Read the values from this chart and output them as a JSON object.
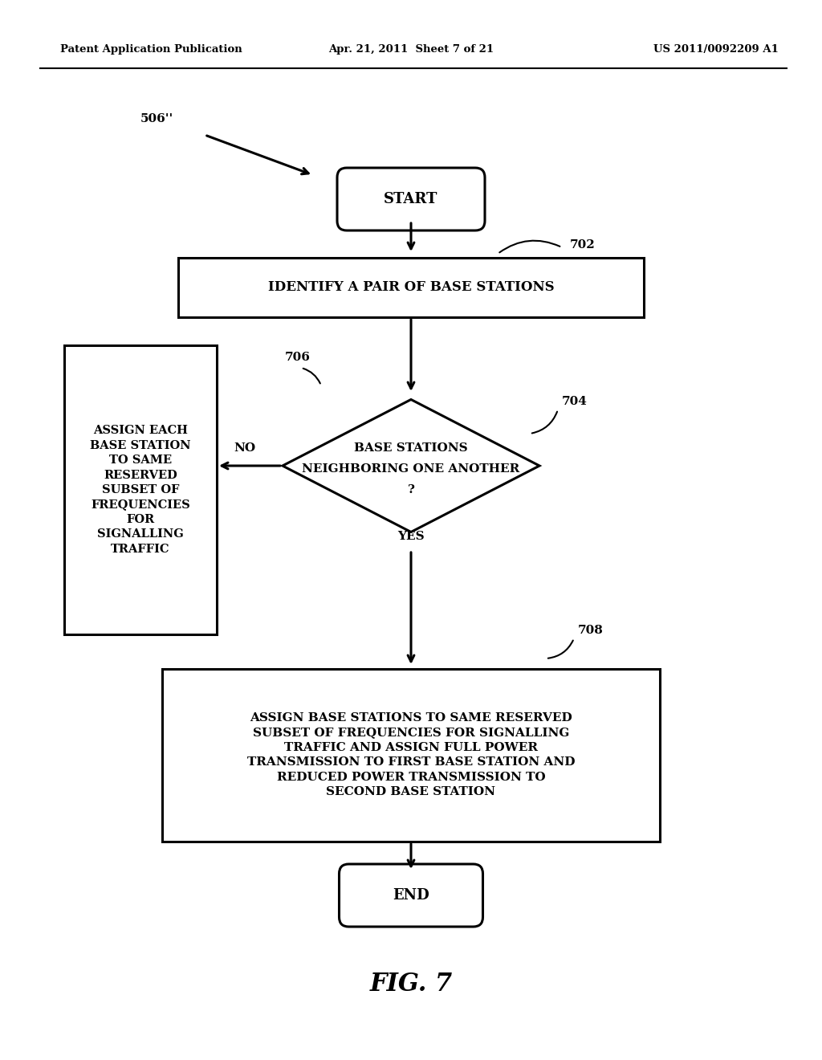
{
  "bg_color": "#ffffff",
  "header_left": "Patent Application Publication",
  "header_center": "Apr. 21, 2011  Sheet 7 of 21",
  "header_right": "US 2011/0092209 A1",
  "label_506": "506''",
  "label_702": "702",
  "label_704": "704",
  "label_706": "706",
  "label_708": "708",
  "start_text": "START",
  "end_text": "END",
  "box702_text": "IDENTIFY A PAIR OF BASE STATIONS",
  "box706_text": "ASSIGN EACH\nBASE STATION\nTO SAME\nRESERVED\nSUBSET OF\nFREQUENCIES\nFOR\nSIGNALLING\nTRAFFIC",
  "box708_text": "ASSIGN BASE STATIONS TO SAME RESERVED\nSUBSET OF FREQUENCIES FOR SIGNALLING\nTRAFFIC AND ASSIGN FULL POWER\nTRANSMISSION TO FIRST BASE STATION AND\nREDUCED POWER TRANSMISSION TO\nSECOND BASE STATION",
  "no_label": "NO",
  "yes_label": "YES",
  "fig_label": "FIG. 7"
}
